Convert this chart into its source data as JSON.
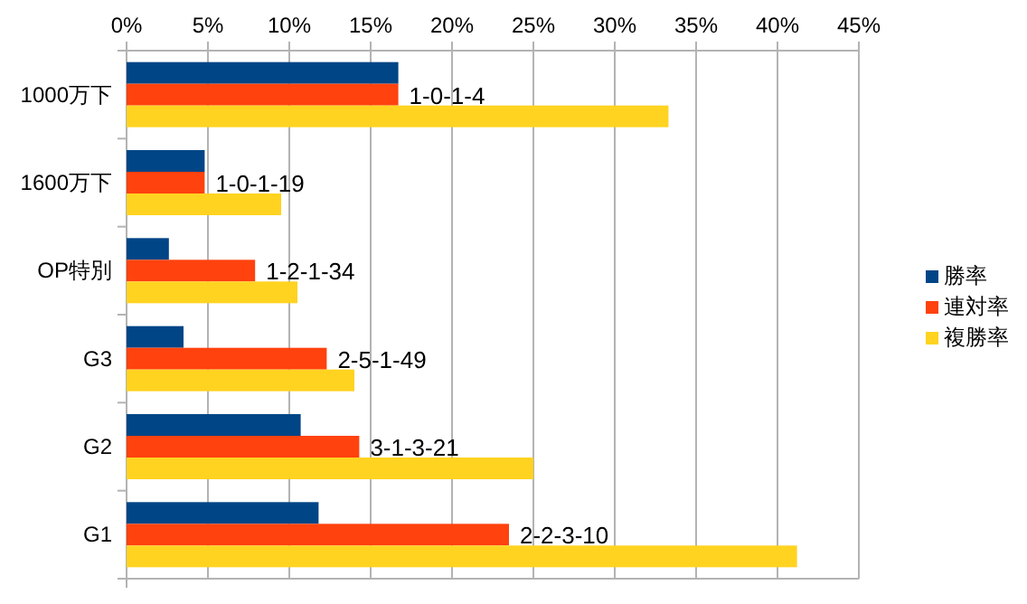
{
  "chart_data": {
    "type": "bar",
    "orientation": "horizontal",
    "categories": [
      "1000万下",
      "1600万下",
      "OP特別",
      "G3",
      "G2",
      "G1"
    ],
    "series": [
      {
        "name": "勝率",
        "color": "#004586",
        "values": [
          16.7,
          4.8,
          2.6,
          3.5,
          10.7,
          11.8
        ]
      },
      {
        "name": "連対率",
        "color": "#ff420e",
        "values": [
          16.7,
          4.8,
          7.9,
          12.3,
          14.3,
          23.5
        ]
      },
      {
        "name": "複勝率",
        "color": "#ffd320",
        "values": [
          33.3,
          9.5,
          10.5,
          14.0,
          25.0,
          41.2
        ]
      }
    ],
    "xlim": [
      0,
      45
    ],
    "xticks": [
      {
        "value": 0,
        "label": "0%"
      },
      {
        "value": 5,
        "label": "5%"
      },
      {
        "value": 10,
        "label": "10%"
      },
      {
        "value": 15,
        "label": "15%"
      },
      {
        "value": 20,
        "label": "20%"
      },
      {
        "value": 25,
        "label": "25%"
      },
      {
        "value": 30,
        "label": "30%"
      },
      {
        "value": 35,
        "label": "35%"
      },
      {
        "value": 40,
        "label": "40%"
      },
      {
        "value": 45,
        "label": "45%"
      }
    ],
    "grid": "x",
    "legend": "right",
    "annotations": [
      {
        "text": "1-0-1-4",
        "x": 16.7,
        "y": "1000万下"
      },
      {
        "text": "1-0-1-19",
        "x": 4.8,
        "y": "1600万下"
      },
      {
        "text": "1-2-1-34",
        "x": 7.9,
        "y": "OP特別"
      },
      {
        "text": "2-5-1-49",
        "x": 12.3,
        "y": "G3"
      },
      {
        "text": "3-1-3-21",
        "x": 14.3,
        "y": "G2"
      },
      {
        "text": "2-2-3-10",
        "x": 23.5,
        "y": "G1"
      }
    ]
  }
}
